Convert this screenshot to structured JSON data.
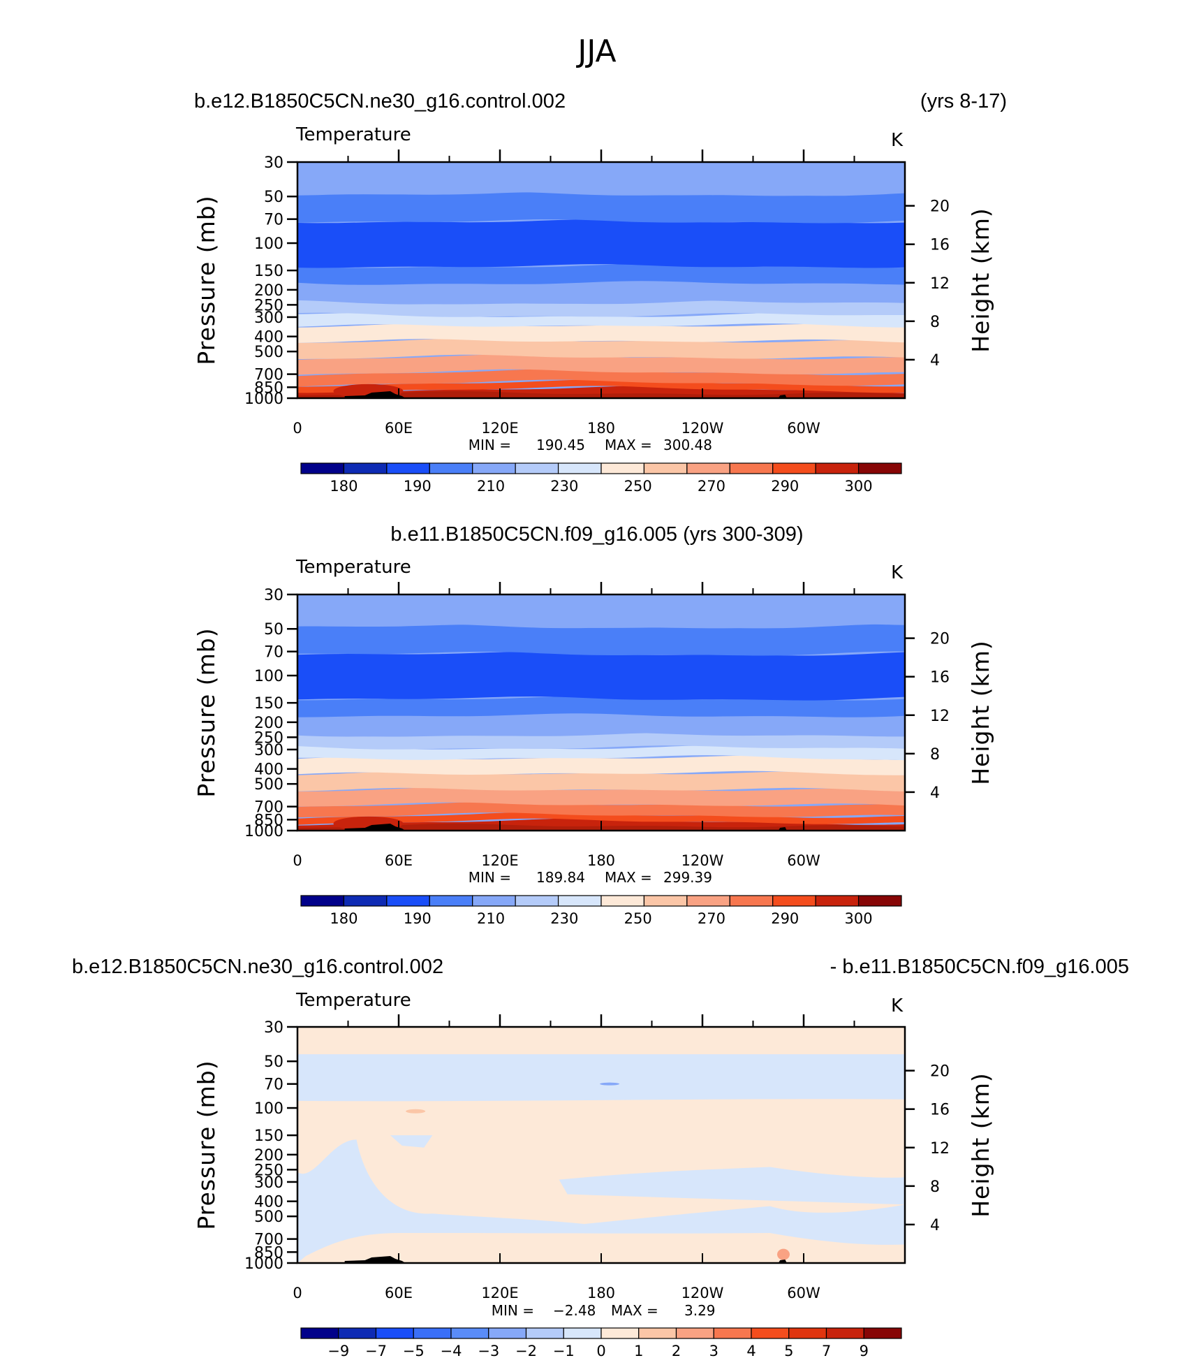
{
  "page_title": "JJA",
  "x_ticks": [
    "0",
    "60E",
    "120E",
    "180",
    "120W",
    "60W"
  ],
  "x_tick_positions": [
    0,
    60,
    120,
    180,
    240,
    300
  ],
  "x_range": [
    0,
    360
  ],
  "pressure_ticks": [
    "30",
    "50",
    "70",
    "100",
    "150",
    "200",
    "250",
    "300",
    "400",
    "500",
    "700",
    "850",
    "1000"
  ],
  "pressure_values": [
    30,
    50,
    70,
    100,
    150,
    200,
    250,
    300,
    400,
    500,
    700,
    850,
    1000
  ],
  "height_ticks": [
    "4",
    "8",
    "12",
    "16",
    "20"
  ],
  "height_values": [
    4,
    8,
    12,
    16,
    20
  ],
  "ylabel_left": "Pressure (mb)",
  "ylabel_right": "Height (km)",
  "chart_data": [
    {
      "type": "contour",
      "title_left": "b.e12.B1850C5CN.ne30_g16.control.002",
      "title_right": "(yrs 8-17)",
      "subtitle": "Temperature",
      "units": "K",
      "min_label": "MIN =",
      "min": "190.45",
      "max_label": "MAX =",
      "max": "300.48",
      "ylim": [
        1000,
        30
      ],
      "xlim": [
        0,
        360
      ],
      "colorbar_ticks": [
        "180",
        "190",
        "210",
        "230",
        "250",
        "270",
        "290",
        "300"
      ],
      "colorbar_colors": [
        "#01018a",
        "#0e2bb4",
        "#1a4ef8",
        "#4a7ff8",
        "#86a8f8",
        "#b4cbf9",
        "#d7e6fb",
        "#fde9d8",
        "#fbc6a7",
        "#f9a283",
        "#f7774f",
        "#f44d1d",
        "#c8230c",
        "#870606"
      ],
      "band_levels": [
        1000,
        900,
        820,
        700,
        560,
        440,
        350,
        290,
        240,
        180,
        140,
        72,
        48,
        30
      ],
      "band_colors": [
        "#c8230c",
        "#f44d1d",
        "#f7774f",
        "#f9a283",
        "#fbc6a7",
        "#fde9d8",
        "#d7e6fb",
        "#b4cbf9",
        "#86a8f8",
        "#4a7ff8",
        "#1a4ef8",
        "#4a7ff8",
        "#86a8f8"
      ]
    },
    {
      "type": "contour",
      "title_center": "b.e11.B1850C5CN.f09_g16.005 (yrs 300-309)",
      "subtitle": "Temperature",
      "units": "K",
      "min_label": "MIN =",
      "min": "189.84",
      "max_label": "MAX =",
      "max": "299.39",
      "ylim": [
        1000,
        30
      ],
      "xlim": [
        0,
        360
      ],
      "colorbar_ticks": [
        "180",
        "190",
        "210",
        "230",
        "250",
        "270",
        "290",
        "300"
      ],
      "colorbar_colors": [
        "#01018a",
        "#0e2bb4",
        "#1a4ef8",
        "#4a7ff8",
        "#86a8f8",
        "#b4cbf9",
        "#d7e6fb",
        "#fde9d8",
        "#fbc6a7",
        "#f9a283",
        "#f7774f",
        "#f44d1d",
        "#c8230c",
        "#870606"
      ],
      "band_levels": [
        1000,
        900,
        820,
        700,
        560,
        440,
        350,
        290,
        240,
        180,
        140,
        72,
        48,
        30
      ],
      "band_colors": [
        "#c8230c",
        "#f44d1d",
        "#f7774f",
        "#f9a283",
        "#fbc6a7",
        "#fde9d8",
        "#d7e6fb",
        "#b4cbf9",
        "#86a8f8",
        "#4a7ff8",
        "#1a4ef8",
        "#4a7ff8",
        "#86a8f8"
      ]
    },
    {
      "type": "contour",
      "title_left": "b.e12.B1850C5CN.ne30_g16.control.002",
      "title_right": "- b.e11.B1850C5CN.f09_g16.005",
      "subtitle": "Temperature",
      "units": "K",
      "min_label": "MIN =",
      "min": "−2.48",
      "max_label": "MAX =",
      "max": "3.29",
      "ylim": [
        1000,
        30
      ],
      "xlim": [
        0,
        360
      ],
      "colorbar_ticks": [
        "−9",
        "−7",
        "−5",
        "−4",
        "−3",
        "−2",
        "−1",
        "0",
        "1",
        "2",
        "3",
        "4",
        "5",
        "7",
        "9"
      ],
      "colorbar_colors": [
        "#01018a",
        "#0e2bb4",
        "#1a4ef8",
        "#3a6ff8",
        "#5a8cf8",
        "#86a8f8",
        "#b4cbf9",
        "#d7e6fb",
        "#fde9d8",
        "#fbc6a7",
        "#f9a283",
        "#f7774f",
        "#f44d1d",
        "#e0350f",
        "#c8230c",
        "#870606"
      ],
      "background_color": "#fde9d8",
      "negative_color": "#d7e6fb"
    }
  ]
}
